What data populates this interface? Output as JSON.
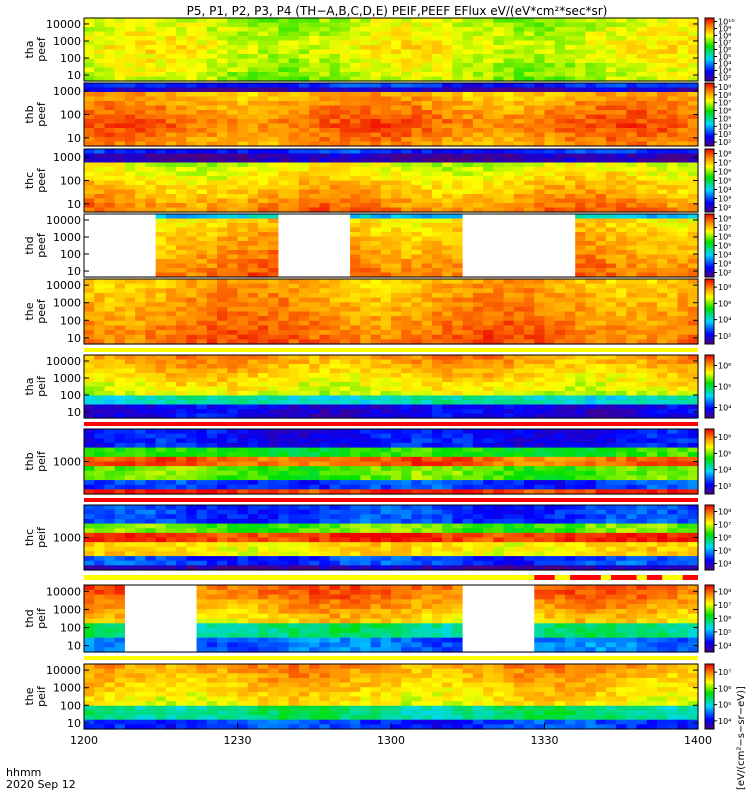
{
  "title": "P5, P1, P2, P3, P4 (TH−A,B,C,D,E) PEIF,PEEF EFlux eV/(eV*cm²*sec*sr)",
  "footer": {
    "label": "hhmm",
    "date": "2020 Sep 12"
  },
  "colorbar_unit_label": "[eV/(cm²−s−sr−eV)]",
  "colors": {
    "background": "#ffffff",
    "axis": "#000000",
    "data_gap": "#ffffff",
    "quality_flag": "#ff0000"
  },
  "chart_data": {
    "type": "heatmap",
    "x_ticks": [
      "1200",
      "1230",
      "1300",
      "1330",
      "1400"
    ],
    "x_range": [
      1200,
      1400
    ],
    "x_tick_values": [
      0,
      30,
      60,
      90,
      120
    ],
    "colormap": "rainbow",
    "y_scale": "log",
    "panels": [
      {
        "id": "tha-peef",
        "probe": "tha",
        "species": "peef",
        "ylabel": [
          "tha",
          "peef"
        ],
        "yticks": [
          "10",
          "100",
          "1000",
          "10000"
        ],
        "cbar_ticks": [
          "10²",
          "10³",
          "10⁴",
          "10⁵",
          "10⁶",
          "10⁷",
          "10⁸",
          "10⁹",
          "10¹⁰"
        ],
        "gaps": [],
        "flag": "none"
      },
      {
        "id": "thb-peef",
        "probe": "thb",
        "species": "peef",
        "ylabel": [
          "thb",
          "peef"
        ],
        "yticks": [
          "10",
          "100",
          "1000"
        ],
        "cbar_ticks": [
          "10²",
          "10³",
          "10⁴",
          "10⁵",
          "10⁶",
          "10⁷",
          "10⁸",
          "10⁹"
        ],
        "gaps": [],
        "flag": "none"
      },
      {
        "id": "thc-peef",
        "probe": "thc",
        "species": "peef",
        "ylabel": [
          "thc",
          "peef"
        ],
        "yticks": [
          "10",
          "100",
          "1000"
        ],
        "cbar_ticks": [
          "10²",
          "10³",
          "10⁴",
          "10⁵",
          "10⁶",
          "10⁷",
          "10⁸"
        ],
        "gaps": [],
        "flag": "none"
      },
      {
        "id": "thd-peef",
        "probe": "thd",
        "species": "peef",
        "ylabel": [
          "thd",
          "peef"
        ],
        "yticks": [
          "10",
          "100",
          "1000",
          "10000"
        ],
        "cbar_ticks": [
          "10²",
          "10³",
          "10⁴",
          "10⁵",
          "10⁶",
          "10⁷",
          "10⁸"
        ],
        "gaps": [
          [
            0,
            14
          ],
          [
            38,
            52
          ],
          [
            74,
            96
          ]
        ],
        "flag": "none"
      },
      {
        "id": "the-peef",
        "probe": "the",
        "species": "peef",
        "ylabel": [
          "the",
          "peef"
        ],
        "yticks": [
          "10",
          "100",
          "1000",
          "10000"
        ],
        "cbar_ticks": [
          "10²",
          "10⁴",
          "10⁶",
          "10⁸"
        ],
        "gaps": [],
        "flag": "yellow"
      },
      {
        "id": "tha-peif",
        "probe": "tha",
        "species": "peif",
        "ylabel": [
          "tha",
          "peif"
        ],
        "yticks": [
          "10",
          "100",
          "1000",
          "10000"
        ],
        "cbar_ticks": [
          "10⁴",
          "10⁵",
          "10⁶"
        ],
        "gaps": [],
        "flag": "red"
      },
      {
        "id": "thb-peif",
        "probe": "thb",
        "species": "peif",
        "ylabel": [
          "thb",
          "peif"
        ],
        "yticks": [
          "1000"
        ],
        "cbar_ticks": [
          "10³",
          "10⁴",
          "10⁵",
          "10⁶"
        ],
        "gaps": [],
        "flag": "red"
      },
      {
        "id": "thc-peif",
        "probe": "thc",
        "species": "peif",
        "ylabel": [
          "thc",
          "peif"
        ],
        "yticks": [
          "1000"
        ],
        "cbar_ticks": [
          "10⁴",
          "10⁵",
          "10⁶",
          "10⁷",
          "10⁸"
        ],
        "gaps": [],
        "flag": "yellow-red"
      },
      {
        "id": "thd-peif",
        "probe": "thd",
        "species": "peif",
        "ylabel": [
          "thd",
          "peif"
        ],
        "yticks": [
          "10",
          "100",
          "1000",
          "10000"
        ],
        "cbar_ticks": [
          "10⁴",
          "10⁵",
          "10⁶",
          "10⁷",
          "10⁸"
        ],
        "gaps": [
          [
            8,
            22
          ],
          [
            74,
            88
          ]
        ],
        "flag": "yellow"
      },
      {
        "id": "the-peif",
        "probe": "the",
        "species": "peif",
        "ylabel": [
          "the",
          "peif"
        ],
        "yticks": [
          "10",
          "100",
          "1000",
          "10000"
        ],
        "cbar_ticks": [
          "10⁴",
          "10⁵",
          "10⁶",
          "10⁷"
        ],
        "gaps": [],
        "flag": "none"
      }
    ]
  }
}
